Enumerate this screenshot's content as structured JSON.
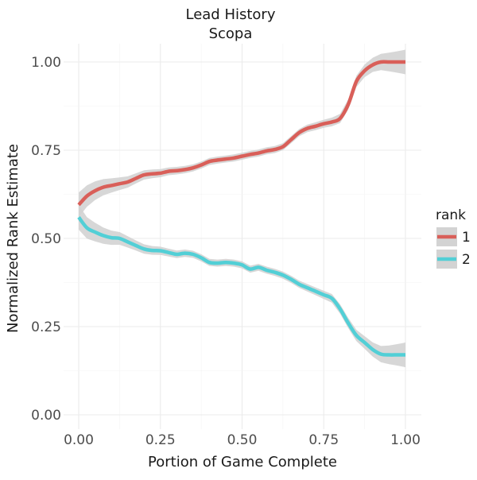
{
  "chart_data": {
    "type": "line",
    "title": "Lead History",
    "subtitle": "Scopa",
    "xlabel": "Portion of Game Complete",
    "ylabel": "Normalized Rank Estimate",
    "xlim": [
      0,
      1
    ],
    "ylim": [
      0,
      1
    ],
    "x_ticks": [
      "0.00",
      "0.25",
      "0.50",
      "0.75",
      "1.00"
    ],
    "y_ticks": [
      "0.00",
      "0.25",
      "0.50",
      "0.75",
      "1.00"
    ],
    "grid": true,
    "legend": {
      "title": "rank",
      "position": "right"
    },
    "series": [
      {
        "name": "1",
        "color": "#d95f59",
        "band_color": "#d3d3d3",
        "points": [
          [
            0.0,
            0.595
          ],
          [
            0.025,
            0.62
          ],
          [
            0.05,
            0.635
          ],
          [
            0.075,
            0.645
          ],
          [
            0.1,
            0.65
          ],
          [
            0.125,
            0.655
          ],
          [
            0.15,
            0.66
          ],
          [
            0.175,
            0.67
          ],
          [
            0.2,
            0.68
          ],
          [
            0.225,
            0.683
          ],
          [
            0.25,
            0.685
          ],
          [
            0.275,
            0.69
          ],
          [
            0.3,
            0.692
          ],
          [
            0.325,
            0.695
          ],
          [
            0.35,
            0.7
          ],
          [
            0.375,
            0.708
          ],
          [
            0.4,
            0.718
          ],
          [
            0.425,
            0.722
          ],
          [
            0.45,
            0.725
          ],
          [
            0.475,
            0.728
          ],
          [
            0.5,
            0.733
          ],
          [
            0.525,
            0.738
          ],
          [
            0.55,
            0.742
          ],
          [
            0.575,
            0.748
          ],
          [
            0.6,
            0.752
          ],
          [
            0.625,
            0.76
          ],
          [
            0.65,
            0.78
          ],
          [
            0.675,
            0.8
          ],
          [
            0.7,
            0.812
          ],
          [
            0.725,
            0.818
          ],
          [
            0.75,
            0.825
          ],
          [
            0.775,
            0.83
          ],
          [
            0.8,
            0.84
          ],
          [
            0.825,
            0.88
          ],
          [
            0.85,
            0.945
          ],
          [
            0.875,
            0.975
          ],
          [
            0.9,
            0.992
          ],
          [
            0.925,
            1.0
          ],
          [
            0.95,
            1.0
          ],
          [
            0.975,
            1.0
          ],
          [
            1.0,
            1.0
          ]
        ]
      },
      {
        "name": "2",
        "color": "#52cfd6",
        "band_color": "#d3d3d3",
        "points": [
          [
            0.0,
            0.56
          ],
          [
            0.025,
            0.53
          ],
          [
            0.05,
            0.518
          ],
          [
            0.075,
            0.508
          ],
          [
            0.1,
            0.502
          ],
          [
            0.125,
            0.5
          ],
          [
            0.15,
            0.49
          ],
          [
            0.175,
            0.48
          ],
          [
            0.2,
            0.47
          ],
          [
            0.225,
            0.466
          ],
          [
            0.25,
            0.465
          ],
          [
            0.275,
            0.46
          ],
          [
            0.3,
            0.455
          ],
          [
            0.325,
            0.458
          ],
          [
            0.35,
            0.455
          ],
          [
            0.375,
            0.445
          ],
          [
            0.4,
            0.432
          ],
          [
            0.425,
            0.43
          ],
          [
            0.45,
            0.432
          ],
          [
            0.475,
            0.43
          ],
          [
            0.5,
            0.425
          ],
          [
            0.525,
            0.413
          ],
          [
            0.55,
            0.418
          ],
          [
            0.575,
            0.41
          ],
          [
            0.6,
            0.404
          ],
          [
            0.625,
            0.396
          ],
          [
            0.65,
            0.384
          ],
          [
            0.675,
            0.37
          ],
          [
            0.7,
            0.36
          ],
          [
            0.725,
            0.35
          ],
          [
            0.75,
            0.34
          ],
          [
            0.775,
            0.33
          ],
          [
            0.8,
            0.3
          ],
          [
            0.825,
            0.26
          ],
          [
            0.85,
            0.225
          ],
          [
            0.875,
            0.205
          ],
          [
            0.9,
            0.185
          ],
          [
            0.925,
            0.172
          ],
          [
            0.95,
            0.17
          ],
          [
            0.975,
            0.17
          ],
          [
            1.0,
            0.17
          ]
        ]
      }
    ]
  }
}
